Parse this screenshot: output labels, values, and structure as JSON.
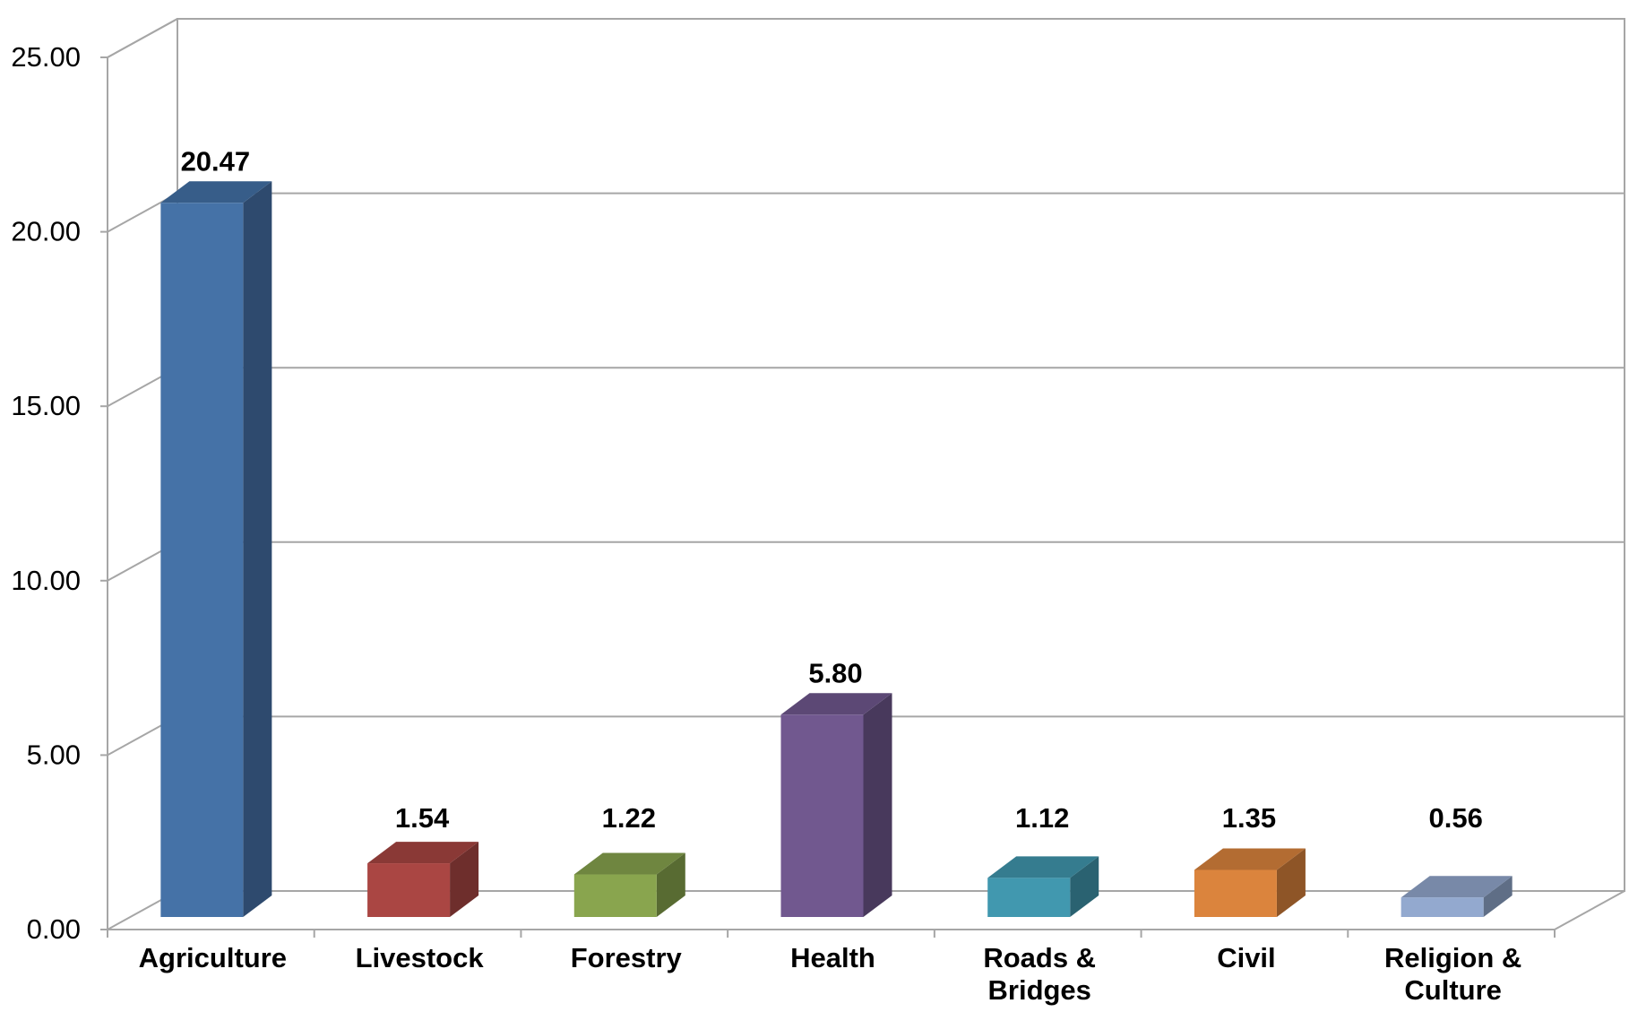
{
  "chart_data": {
    "type": "bar",
    "style": "3d-column",
    "categories": [
      [
        "Agriculture"
      ],
      [
        "Livestock"
      ],
      [
        "Forestry"
      ],
      [
        "Health"
      ],
      [
        "Roads &",
        "Bridges"
      ],
      [
        "Civil"
      ],
      [
        "Religion &",
        "Culture"
      ]
    ],
    "values": [
      20.47,
      1.54,
      1.22,
      5.8,
      1.12,
      1.35,
      0.56
    ],
    "value_labels": [
      "20.47",
      "1.54",
      "1.22",
      "5.80",
      "1.12",
      "1.35",
      "0.56"
    ],
    "colors": [
      {
        "front": "#4572A7",
        "side": "#2E4A6E",
        "top": "#375D89"
      },
      {
        "front": "#AA4643",
        "side": "#6E2E2C",
        "top": "#8A3936"
      },
      {
        "front": "#89A54E",
        "side": "#586B32",
        "top": "#6F8640"
      },
      {
        "front": "#71588F",
        "side": "#48395C",
        "top": "#5C4875"
      },
      {
        "front": "#4198AF",
        "side": "#2A6271",
        "top": "#357C8F"
      },
      {
        "front": "#DB843D",
        "side": "#8E5527",
        "top": "#B36C32"
      },
      {
        "front": "#93A9CF",
        "side": "#5F6E86",
        "top": "#7889A8"
      }
    ],
    "ylim": [
      0,
      25
    ],
    "yticks": [
      "0.00",
      "5.00",
      "10.00",
      "15.00",
      "20.00",
      "25.00"
    ],
    "grid": true,
    "title": "",
    "xlabel": "",
    "ylabel": ""
  }
}
